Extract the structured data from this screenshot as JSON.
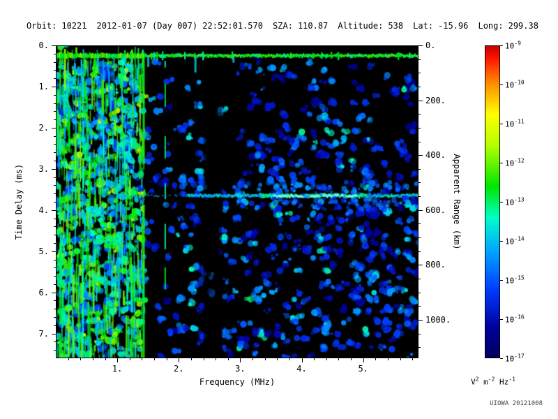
{
  "header": {
    "fields": [
      {
        "label": "Orbit:",
        "value": "10221"
      },
      {
        "label": "",
        "value": "2012-01-07 (Day 007) 22:52:01.570"
      },
      {
        "label": "SZA:",
        "value": "110.87"
      },
      {
        "label": "Altitude:",
        "value": "538"
      },
      {
        "label": "Lat:",
        "value": "-15.96"
      },
      {
        "label": "Long:",
        "value": "299.38"
      }
    ]
  },
  "chart_data": {
    "type": "heatmap",
    "subtype": "radar sounder ionogram spectrogram",
    "title": "",
    "xlabel": "Frequency (MHz)",
    "ylabel_left": "Time Delay (ms)",
    "ylabel_right": "Apparent Range (km)",
    "background": "#000000",
    "x_axis": {
      "min": 0,
      "max": 5.9,
      "minor_step": 0.2,
      "ticks": [
        {
          "v": 1,
          "label": "1."
        },
        {
          "v": 2,
          "label": "2."
        },
        {
          "v": 3,
          "label": "3."
        },
        {
          "v": 4,
          "label": "4."
        },
        {
          "v": 5,
          "label": "5."
        }
      ]
    },
    "y_axis_left": {
      "min": 0,
      "max": 7.6,
      "minor_step": 0.2,
      "ticks": [
        {
          "v": 0,
          "label": "0."
        },
        {
          "v": 1,
          "label": "1."
        },
        {
          "v": 2,
          "label": "2."
        },
        {
          "v": 3,
          "label": "3."
        },
        {
          "v": 4,
          "label": "4."
        },
        {
          "v": 5,
          "label": "5."
        },
        {
          "v": 6,
          "label": "6."
        },
        {
          "v": 7,
          "label": "7."
        }
      ]
    },
    "y_axis_right": {
      "km_per_ms": 150,
      "minor_step_km": 50,
      "ticks": [
        {
          "v": 0,
          "label": "0."
        },
        {
          "v": 200,
          "label": "200."
        },
        {
          "v": 400,
          "label": "400."
        },
        {
          "v": 600,
          "label": "600."
        },
        {
          "v": 800,
          "label": "800."
        },
        {
          "v": 1000,
          "label": "1000."
        }
      ]
    },
    "colorbar": {
      "scale": "log10",
      "top_value": "1e-9",
      "bottom_value": "1e-17",
      "tick_exponents": [
        -9,
        -10,
        -11,
        -12,
        -13,
        -14,
        -15,
        -16,
        -17
      ],
      "unit_parts": [
        [
          "V",
          "2"
        ],
        [
          "m",
          "-2"
        ],
        [
          "Hz",
          "-1"
        ]
      ],
      "colormap": "rainbow",
      "stops": [
        [
          0.0,
          "#00005a"
        ],
        [
          0.1,
          "#0000a0"
        ],
        [
          0.22,
          "#003cff"
        ],
        [
          0.35,
          "#00aaff"
        ],
        [
          0.45,
          "#00ffc8"
        ],
        [
          0.55,
          "#00e600"
        ],
        [
          0.68,
          "#b4ff00"
        ],
        [
          0.78,
          "#ffff00"
        ],
        [
          0.88,
          "#ff8c00"
        ],
        [
          0.96,
          "#ff1400"
        ],
        [
          1.0,
          "#c80000"
        ]
      ]
    },
    "features": [
      {
        "name": "first-return-echo",
        "time_delay_ms": 0.25,
        "freq_range_mhz": [
          0,
          5.9
        ],
        "color": "bright cyan-green horizontal line across full bandwidth"
      },
      {
        "name": "surface-reflection-echo",
        "time_delay_ms": 3.65,
        "apparent_range_km": 548,
        "freq_range_mhz": [
          1.0,
          5.9
        ],
        "color": "blue to white-cyan horizontal band, brightest 3.5-4.9 MHz"
      },
      {
        "name": "ionospheric-noise-band",
        "freq_range_mhz": [
          0,
          1.45
        ],
        "time_range_ms": [
          0,
          7.6
        ],
        "color": "dense green/cyan vertical streaks over full time-delay range"
      },
      {
        "name": "bright-vertical-line",
        "freq_mhz": 1.43,
        "color": "green, full height"
      },
      {
        "name": "secondary-vertical-line",
        "freq_mhz": 1.78,
        "color": "green, partial height"
      },
      {
        "name": "dark-column",
        "freq_range_mhz": [
          2.4,
          2.7
        ]
      },
      {
        "name": "diffuse-clutter",
        "description": "scattered faint blue blobs across plot, denser below the surface echo and around 4 MHz"
      }
    ]
  },
  "footer": {
    "credit": "UIOWA 20121008"
  }
}
